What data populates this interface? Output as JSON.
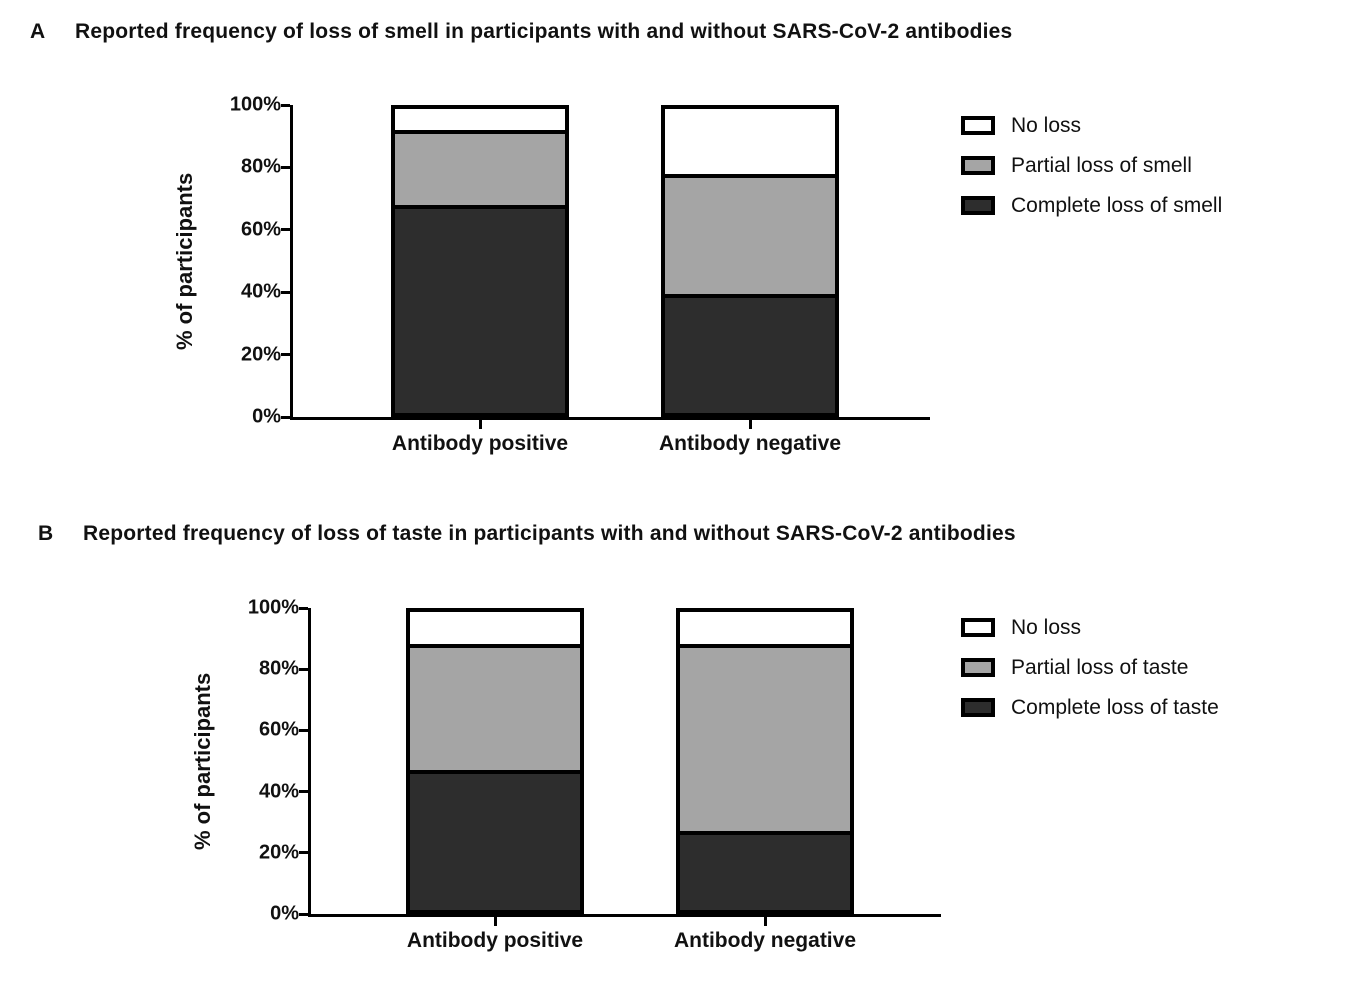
{
  "figure": {
    "background": "#ffffff",
    "text_color": "#111111",
    "axis_color": "#000000"
  },
  "chart_data": [
    {
      "type": "bar",
      "stacked": true,
      "panel_label": "A",
      "title": "Reported frequency of loss of smell in participants with and without SARS-CoV-2 antibodies",
      "ylabel": "% of participants",
      "ylim": [
        0,
        100
      ],
      "yticks": [
        0,
        20,
        40,
        60,
        80,
        100
      ],
      "ytick_suffix": "%",
      "grid": false,
      "legend_position": "right",
      "categories": [
        "Antibody positive",
        "Antibody negative"
      ],
      "series": [
        {
          "name": "Complete loss of smell",
          "color": "#2d2d2d",
          "values": [
            69,
            39
          ]
        },
        {
          "name": "Partial loss of smell",
          "color": "#a5a5a5",
          "values": [
            24,
            39
          ]
        },
        {
          "name": "No loss",
          "color": "#ffffff",
          "values": [
            7,
            22
          ]
        }
      ]
    },
    {
      "type": "bar",
      "stacked": true,
      "panel_label": "B",
      "title": "Reported frequency of loss of taste in participants with and without SARS-CoV-2 antibodies",
      "ylabel": "% of participants",
      "ylim": [
        0,
        100
      ],
      "yticks": [
        0,
        20,
        40,
        60,
        80,
        100
      ],
      "ytick_suffix": "%",
      "grid": false,
      "legend_position": "right",
      "categories": [
        "Antibody positive",
        "Antibody negative"
      ],
      "series": [
        {
          "name": "Complete loss of taste",
          "color": "#2d2d2d",
          "values": [
            47,
            26
          ]
        },
        {
          "name": "Partial loss of taste",
          "color": "#a5a5a5",
          "values": [
            42,
            63
          ]
        },
        {
          "name": "No loss",
          "color": "#ffffff",
          "values": [
            11,
            11
          ]
        }
      ]
    }
  ]
}
